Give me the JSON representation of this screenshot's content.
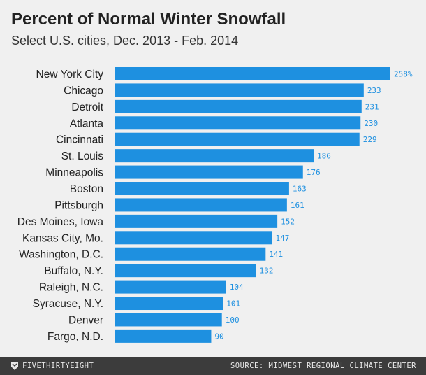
{
  "header": {
    "title": "Percent of Normal Winter Snowfall",
    "subtitle": "Select U.S. cities, Dec. 2013 - Feb. 2014"
  },
  "footer": {
    "brand": "FIVETHIRTYEIGHT",
    "brand_icon": "fivethirtyeight-logo-icon",
    "source": "SOURCE: MIDWEST REGIONAL CLIMATE CENTER"
  },
  "colors": {
    "bar": "#1e90e0",
    "label": "#1e90e0",
    "background": "#f0f0f0",
    "footer": "#3c3c3c"
  },
  "chart_data": {
    "type": "bar",
    "orientation": "horizontal",
    "title": "Percent of Normal Winter Snowfall",
    "subtitle": "Select U.S. cities, Dec. 2013 - Feb. 2014",
    "categories": [
      "New York City",
      "Chicago",
      "Detroit",
      "Atlanta",
      "Cincinnati",
      "St. Louis",
      "Minneapolis",
      "Boston",
      "Pittsburgh",
      "Des Moines, Iowa",
      "Kansas City, Mo.",
      "Washington, D.C.",
      "Buffalo, N.Y.",
      "Raleigh, N.C.",
      "Syracuse, N.Y.",
      "Denver",
      "Fargo, N.D."
    ],
    "values": [
      258,
      233,
      231,
      230,
      229,
      186,
      176,
      163,
      161,
      152,
      147,
      141,
      132,
      104,
      101,
      100,
      90
    ],
    "value_labels": [
      "258%",
      "233",
      "231",
      "230",
      "229",
      "186",
      "176",
      "163",
      "161",
      "152",
      "147",
      "141",
      "132",
      "104",
      "101",
      "100",
      "90"
    ],
    "xlim": [
      0,
      258
    ],
    "grid": false,
    "legend": "none"
  }
}
